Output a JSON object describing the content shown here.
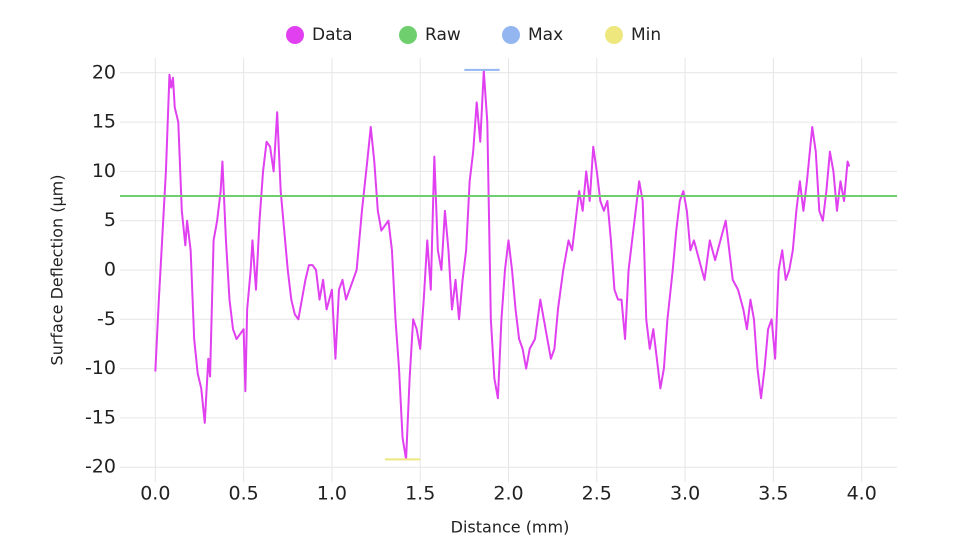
{
  "chart_data": {
    "type": "line",
    "x_label": "Distance (mm)",
    "y_label": "Surface Deflection (μm)",
    "xlim": [
      -0.2,
      4.2
    ],
    "ylim": [
      -21.5,
      21.5
    ],
    "xticks": [
      {
        "value": 0,
        "label": "0.0"
      },
      {
        "value": 0.5,
        "label": "0.5"
      },
      {
        "value": 1,
        "label": "1.0"
      },
      {
        "value": 1.5,
        "label": "1.5"
      },
      {
        "value": 2,
        "label": "2.0"
      },
      {
        "value": 2.5,
        "label": "2.5"
      },
      {
        "value": 3,
        "label": "3.0"
      },
      {
        "value": 3.5,
        "label": "3.5"
      },
      {
        "value": 4,
        "label": "4.0"
      }
    ],
    "yticks": [
      -20,
      -15,
      -10,
      -5,
      0,
      5,
      10,
      15,
      20
    ],
    "grid": true,
    "legend": "top",
    "series": [
      {
        "name": "Data",
        "color": "#e040f0",
        "x": [
          0.0,
          0.02,
          0.04,
          0.06,
          0.08,
          0.09,
          0.1,
          0.11,
          0.13,
          0.15,
          0.17,
          0.18,
          0.2,
          0.22,
          0.24,
          0.26,
          0.28,
          0.3,
          0.31,
          0.33,
          0.35,
          0.37,
          0.38,
          0.4,
          0.42,
          0.44,
          0.46,
          0.48,
          0.5,
          0.51,
          0.52,
          0.54,
          0.55,
          0.57,
          0.59,
          0.61,
          0.63,
          0.65,
          0.67,
          0.69,
          0.71,
          0.73,
          0.75,
          0.77,
          0.79,
          0.81,
          0.83,
          0.85,
          0.87,
          0.89,
          0.91,
          0.93,
          0.95,
          0.97,
          1.0,
          1.02,
          1.04,
          1.06,
          1.08,
          1.1,
          1.12,
          1.14,
          1.17,
          1.2,
          1.22,
          1.24,
          1.26,
          1.28,
          1.3,
          1.32,
          1.34,
          1.36,
          1.38,
          1.4,
          1.42,
          1.44,
          1.46,
          1.48,
          1.5,
          1.52,
          1.54,
          1.56,
          1.58,
          1.6,
          1.62,
          1.64,
          1.66,
          1.68,
          1.7,
          1.72,
          1.74,
          1.76,
          1.78,
          1.8,
          1.82,
          1.84,
          1.86,
          1.88,
          1.9,
          1.92,
          1.94,
          1.96,
          1.98,
          2.0,
          2.02,
          2.04,
          2.06,
          2.08,
          2.1,
          2.12,
          2.15,
          2.18,
          2.2,
          2.22,
          2.24,
          2.26,
          2.28,
          2.31,
          2.34,
          2.36,
          2.38,
          2.4,
          2.42,
          2.44,
          2.46,
          2.48,
          2.5,
          2.52,
          2.54,
          2.56,
          2.58,
          2.6,
          2.62,
          2.64,
          2.66,
          2.68,
          2.7,
          2.72,
          2.74,
          2.76,
          2.78,
          2.8,
          2.82,
          2.84,
          2.86,
          2.88,
          2.9,
          2.93,
          2.95,
          2.97,
          2.99,
          3.01,
          3.03,
          3.05,
          3.08,
          3.11,
          3.14,
          3.17,
          3.2,
          3.23,
          3.25,
          3.27,
          3.3,
          3.33,
          3.35,
          3.37,
          3.39,
          3.41,
          3.43,
          3.45,
          3.47,
          3.49,
          3.51,
          3.53,
          3.55,
          3.57,
          3.59,
          3.61,
          3.63,
          3.65,
          3.67,
          3.69,
          3.72,
          3.74,
          3.76,
          3.78,
          3.8,
          3.82,
          3.84,
          3.86,
          3.88,
          3.9,
          3.92,
          3.93
        ],
        "values": [
          -10.3,
          -3,
          3.5,
          10,
          19.8,
          18.5,
          19.5,
          16.5,
          15,
          6,
          2.5,
          5,
          2,
          -7,
          -10.5,
          -12,
          -15.5,
          -9,
          -10.8,
          3,
          5,
          8,
          11,
          3,
          -3,
          -6,
          -7,
          -6.5,
          -6,
          -12.3,
          -4,
          0,
          3,
          -2,
          5,
          10,
          13,
          12.5,
          10,
          16,
          8,
          4,
          0,
          -3,
          -4.5,
          -5,
          -3,
          -1,
          0.5,
          0.5,
          0,
          -3,
          -1,
          -4,
          -2,
          -9,
          -2,
          -1,
          -3,
          -2,
          -1,
          0,
          6,
          11,
          14.5,
          11,
          6,
          4,
          4.5,
          5,
          2,
          -5,
          -10,
          -17,
          -19.2,
          -11,
          -5,
          -6,
          -8,
          -3,
          3,
          -2,
          11.5,
          2,
          0,
          6,
          2,
          -4,
          -1,
          -5,
          -1,
          2,
          9,
          12,
          17,
          13,
          20.2,
          15,
          -5,
          -11,
          -13,
          -5,
          0,
          3,
          0,
          -4,
          -7,
          -8,
          -10,
          -8,
          -7,
          -3,
          -5,
          -7,
          -9,
          -8,
          -4,
          0,
          3,
          2,
          5,
          8,
          6,
          10,
          7,
          12.5,
          10,
          7,
          6,
          7,
          3,
          -2,
          -3,
          -3,
          -7,
          0,
          3,
          6,
          9,
          7,
          -5,
          -8,
          -6,
          -9,
          -12,
          -10,
          -5,
          0,
          4,
          7,
          8,
          6,
          2,
          3,
          1,
          -1,
          3,
          1,
          3,
          5,
          2,
          -1,
          -2,
          -4,
          -6,
          -3,
          -5,
          -10,
          -13,
          -10,
          -6,
          -5,
          -9,
          0,
          2,
          -1,
          0,
          2,
          6,
          9,
          6,
          9,
          14.5,
          12,
          6,
          5,
          8,
          12,
          10,
          6,
          9,
          7,
          11,
          10.5
        ]
      },
      {
        "name": "Raw",
        "color": "#6fcf6f",
        "x": [
          -0.2,
          4.2
        ],
        "values": [
          7.5,
          7.5
        ]
      },
      {
        "name": "Max",
        "color": "#93b6f0",
        "x": [
          1.75,
          1.95
        ],
        "values": [
          20.3,
          20.3
        ]
      },
      {
        "name": "Min",
        "color": "#ede77e",
        "x": [
          1.3,
          1.5
        ],
        "values": [
          -19.2,
          -19.2
        ]
      }
    ]
  }
}
